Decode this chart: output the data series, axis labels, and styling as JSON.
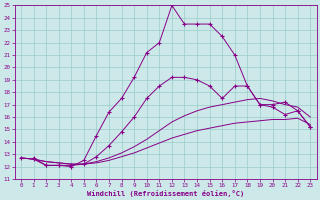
{
  "xlabel": "Windchill (Refroidissement éolien,°C)",
  "background_color": "#cce8e8",
  "grid_color": "#99cccc",
  "line_color": "#880088",
  "x_ticks": [
    0,
    1,
    2,
    3,
    4,
    5,
    6,
    7,
    8,
    9,
    10,
    11,
    12,
    13,
    14,
    15,
    16,
    17,
    18,
    19,
    20,
    21,
    22,
    23
  ],
  "ylim": [
    11,
    25
  ],
  "xlim": [
    -0.5,
    23.5
  ],
  "y_ticks": [
    11,
    12,
    13,
    14,
    15,
    16,
    17,
    18,
    19,
    20,
    21,
    22,
    23,
    24,
    25
  ],
  "series": [
    {
      "x": [
        0,
        1,
        2,
        3,
        4,
        5,
        6,
        7,
        8,
        9,
        10,
        11,
        12,
        13,
        14,
        15,
        16,
        17,
        18,
        19,
        20,
        21,
        22,
        23
      ],
      "y": [
        12.7,
        12.6,
        12.4,
        12.3,
        12.2,
        12.2,
        12.3,
        12.5,
        12.8,
        13.1,
        13.5,
        13.9,
        14.3,
        14.6,
        14.9,
        15.1,
        15.3,
        15.5,
        15.6,
        15.7,
        15.8,
        15.8,
        15.9,
        15.4
      ],
      "marker": false
    },
    {
      "x": [
        0,
        1,
        2,
        3,
        4,
        5,
        6,
        7,
        8,
        9,
        10,
        11,
        12,
        13,
        14,
        15,
        16,
        17,
        18,
        19,
        20,
        21,
        22,
        23
      ],
      "y": [
        12.7,
        12.6,
        12.4,
        12.3,
        12.2,
        12.2,
        12.4,
        12.7,
        13.1,
        13.6,
        14.2,
        14.9,
        15.6,
        16.1,
        16.5,
        16.8,
        17.0,
        17.2,
        17.4,
        17.5,
        17.3,
        17.0,
        16.8,
        16.0
      ],
      "marker": false
    },
    {
      "x": [
        0,
        1,
        2,
        3,
        4,
        5,
        6,
        7,
        8,
        9,
        10,
        11,
        12,
        13,
        14,
        15,
        16,
        17,
        18,
        19,
        20,
        21,
        22,
        23
      ],
      "y": [
        12.7,
        12.6,
        12.1,
        12.1,
        12.1,
        12.2,
        12.8,
        13.7,
        14.8,
        16.0,
        17.5,
        18.5,
        19.2,
        19.2,
        19.0,
        18.5,
        17.5,
        18.5,
        18.5,
        17.0,
        17.0,
        17.2,
        16.5,
        15.2
      ],
      "marker": true
    },
    {
      "x": [
        1,
        2,
        3,
        4,
        5,
        6,
        7,
        8,
        9,
        10,
        11,
        12,
        13,
        14,
        15,
        16,
        17,
        18,
        19,
        20,
        21,
        22,
        23
      ],
      "y": [
        12.7,
        12.1,
        12.1,
        12.0,
        12.5,
        14.5,
        16.4,
        17.5,
        19.2,
        21.2,
        22.0,
        25.0,
        23.5,
        23.5,
        23.5,
        22.5,
        21.0,
        18.5,
        17.0,
        16.8,
        16.2,
        16.5,
        15.2
      ],
      "marker": true
    }
  ]
}
